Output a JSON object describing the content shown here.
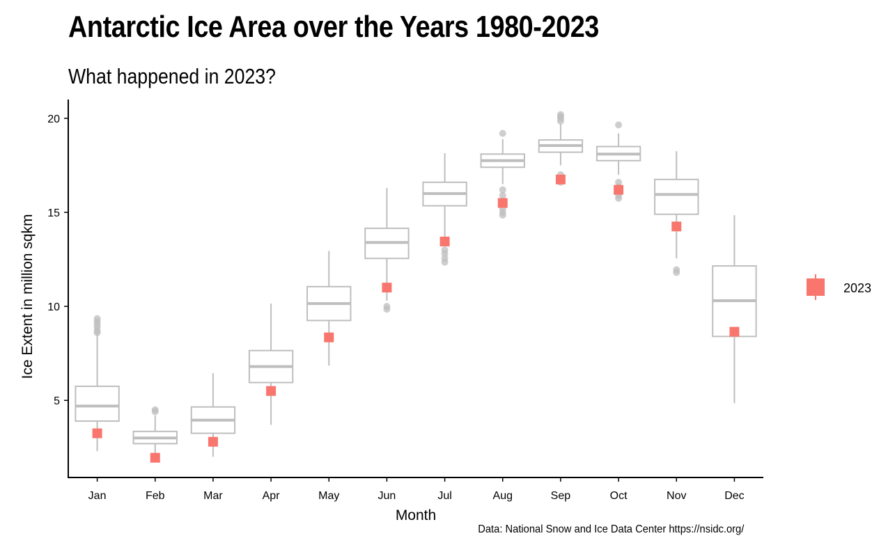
{
  "chart_data": {
    "type": "boxplot",
    "title": "Antarctic Ice Area over the Years 1980-2023",
    "subtitle": "What happened in 2023?",
    "caption": "Data: National Snow and Ice Data Center https://nsidc.org/",
    "xlabel": "Month",
    "ylabel": "Ice Extent in million sqkm",
    "ylim": [
      0.9,
      21.0
    ],
    "yticks": [
      5,
      10,
      15,
      20
    ],
    "grid": false,
    "legend_position": "right",
    "categories": [
      "Jan",
      "Feb",
      "Mar",
      "Apr",
      "May",
      "Jun",
      "Jul",
      "Aug",
      "Sep",
      "Oct",
      "Nov",
      "Dec"
    ],
    "boxes": [
      {
        "min": 2.3,
        "q1": 3.9,
        "median": 4.7,
        "q3": 5.75,
        "max": 8.5,
        "outliers": [
          8.6,
          8.7,
          8.9,
          9.05,
          9.2,
          9.35
        ]
      },
      {
        "min": 2.1,
        "q1": 2.7,
        "median": 3.0,
        "q3": 3.35,
        "max": 4.2,
        "outliers": [
          4.4,
          4.5
        ]
      },
      {
        "min": 2.0,
        "q1": 3.25,
        "median": 3.95,
        "q3": 4.65,
        "max": 6.45,
        "outliers": []
      },
      {
        "min": 3.7,
        "q1": 5.95,
        "median": 6.8,
        "q3": 7.65,
        "max": 10.15,
        "outliers": []
      },
      {
        "min": 6.85,
        "q1": 9.25,
        "median": 10.15,
        "q3": 11.05,
        "max": 12.95,
        "outliers": []
      },
      {
        "min": 10.3,
        "q1": 12.55,
        "median": 13.4,
        "q3": 14.15,
        "max": 16.3,
        "outliers": [
          9.85,
          10.0
        ]
      },
      {
        "min": 13.6,
        "q1": 15.35,
        "median": 16.0,
        "q3": 16.6,
        "max": 18.15,
        "outliers": [
          12.35,
          12.55,
          12.8,
          13.0
        ]
      },
      {
        "min": 16.5,
        "q1": 17.4,
        "median": 17.75,
        "q3": 18.1,
        "max": 18.9,
        "outliers": [
          14.85,
          15.0,
          15.2,
          15.6,
          15.9,
          16.2,
          19.2
        ]
      },
      {
        "min": 17.5,
        "q1": 18.2,
        "median": 18.55,
        "q3": 18.85,
        "max": 19.7,
        "outliers": [
          16.6,
          16.8,
          17.0,
          19.85,
          20.0,
          20.1,
          20.2
        ]
      },
      {
        "min": 17.0,
        "q1": 17.75,
        "median": 18.1,
        "q3": 18.5,
        "max": 19.2,
        "outliers": [
          15.75,
          15.9,
          16.1,
          16.35,
          16.6,
          19.65
        ]
      },
      {
        "min": 12.55,
        "q1": 14.9,
        "median": 15.95,
        "q3": 16.75,
        "max": 18.25,
        "outliers": [
          11.8,
          11.95
        ]
      },
      {
        "min": 4.85,
        "q1": 8.4,
        "median": 10.3,
        "q3": 12.15,
        "max": 14.85,
        "outliers": []
      }
    ],
    "series": [
      {
        "name": "2023",
        "color": "#F8766D",
        "values": [
          3.25,
          1.95,
          2.8,
          5.5,
          8.35,
          11.0,
          13.45,
          15.5,
          16.75,
          16.2,
          14.25,
          8.65
        ]
      }
    ],
    "box_color": "#BEBEBE",
    "legend": {
      "label": "2023"
    }
  }
}
